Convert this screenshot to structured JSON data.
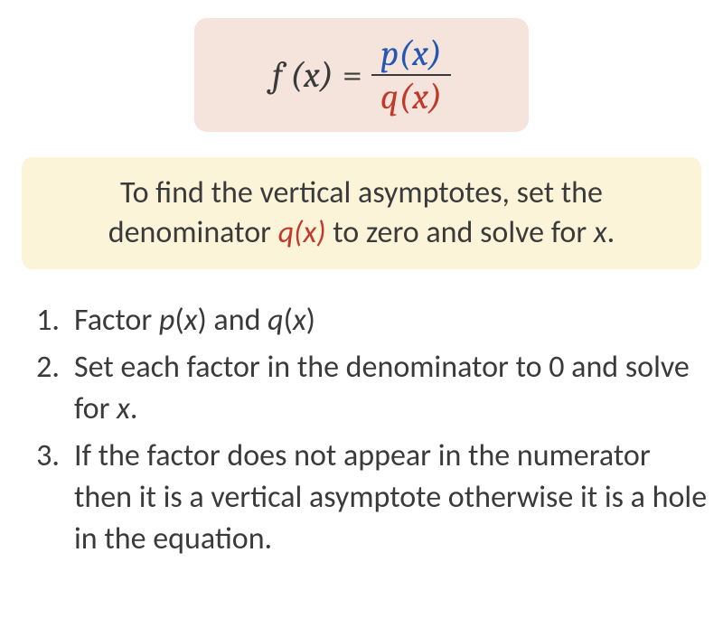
{
  "equation": {
    "lhs": "f (x)",
    "eq": "=",
    "numerator": "p(x)",
    "denominator": "q(x)",
    "colors": {
      "text": "#3a3a3a",
      "numerator": "#2556b3",
      "denominator": "#c1392b",
      "box_bg": "#f5e4dc"
    },
    "fontsize": 40
  },
  "callout": {
    "pre": "To find the vertical asymptotes, set the denominator ",
    "qx": "q",
    "paren_x": "(x)",
    "post": " to zero and solve for ",
    "xvar": "x",
    "period": ".",
    "bg": "#fcf4d9",
    "fontsize": 34
  },
  "steps": {
    "fontsize": 34,
    "items": [
      {
        "parts": [
          {
            "t": "Factor "
          },
          {
            "t": "p",
            "ital": true
          },
          {
            "t": "("
          },
          {
            "t": "x",
            "ital": true
          },
          {
            "t": ") and "
          },
          {
            "t": "q",
            "ital": true
          },
          {
            "t": "("
          },
          {
            "t": "x",
            "ital": true
          },
          {
            "t": ")"
          }
        ]
      },
      {
        "parts": [
          {
            "t": "Set each factor in the denominator to 0 and solve for "
          },
          {
            "t": "x",
            "ital": true
          },
          {
            "t": "."
          }
        ]
      },
      {
        "parts": [
          {
            "t": "If the factor does not appear in the numerator then it is a vertical asymptote otherwise it is a hole in the equation."
          }
        ]
      }
    ]
  }
}
